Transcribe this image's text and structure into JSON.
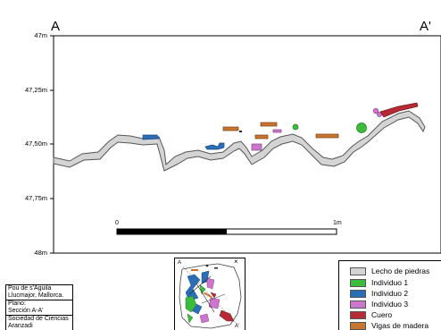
{
  "section": {
    "label_left": "A",
    "label_right": "A'"
  },
  "elevation_axis": {
    "ticks": [
      "47m",
      "47,25m",
      "47,50m",
      "47,75m",
      "48m"
    ]
  },
  "scale_bar": {
    "start_label": "0",
    "end_label": "1m"
  },
  "info_box": {
    "site": "Pou de s'Àguila",
    "location": "Llucmajor, Mallorca.",
    "plan_label": "Plano:",
    "plan_name": "Sección A-A'",
    "organization_line1": "Sociedad de Ciencias",
    "organization_line2": "Aranzadi"
  },
  "inset_map": {
    "label_a": "A",
    "label_a_prime": "A'",
    "north_marker": "×"
  },
  "legend": {
    "items": [
      {
        "label": "Lecho de piedras",
        "color": "#d4d4d4"
      },
      {
        "label": "Individuo 1",
        "color": "#3dbb3d"
      },
      {
        "label": "Individuo 2",
        "color": "#2a6fb5"
      },
      {
        "label": "Individuo 3",
        "color": "#cc77cc"
      },
      {
        "label": "Cuero",
        "color": "#b52a35"
      },
      {
        "label": "Vigas de madera",
        "color": "#c8752f"
      }
    ]
  }
}
